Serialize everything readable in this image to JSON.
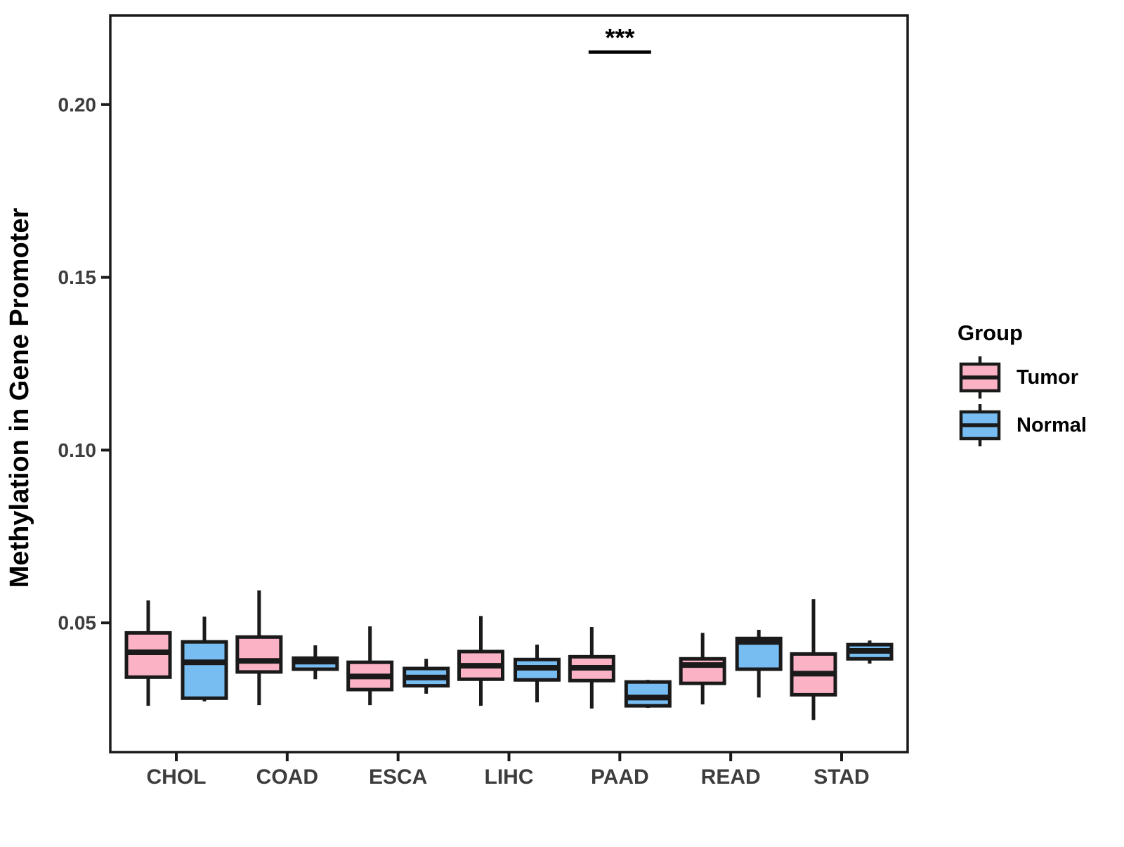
{
  "chart_data": {
    "type": "boxplot",
    "title": "",
    "xlabel": "",
    "ylabel": "Methylation in Gene Promoter",
    "categories": [
      "CHOL",
      "COAD",
      "ESCA",
      "LIHC",
      "PAAD",
      "READ",
      "STAD"
    ],
    "y_ticks": [
      "0.05",
      "0.10",
      "0.15",
      "0.20"
    ],
    "y_tick_values": [
      0.05,
      0.1,
      0.15,
      0.2
    ],
    "ylim": [
      0.0126,
      0.2258
    ],
    "grid": false,
    "colors": {
      "tumor_fill": "#FBB2C4",
      "normal_fill": "#77BDF2",
      "stroke": "#1a1a1a",
      "axis_text": "#3d3d3d",
      "title_text": "#000000"
    },
    "legend": {
      "title": "Group",
      "position": "right",
      "entries": [
        {
          "label": "Tumor",
          "color": "#FBB2C4"
        },
        {
          "label": "Normal",
          "color": "#77BDF2"
        }
      ]
    },
    "series": [
      {
        "name": "Tumor",
        "color": "#FBB2C4",
        "boxes": [
          {
            "category": "CHOL",
            "min": 0.026,
            "q1": 0.0343,
            "median": 0.0415,
            "q3": 0.0471,
            "max": 0.0565
          },
          {
            "category": "COAD",
            "min": 0.0262,
            "q1": 0.0358,
            "median": 0.039,
            "q3": 0.0459,
            "max": 0.0594
          },
          {
            "category": "ESCA",
            "min": 0.0262,
            "q1": 0.0307,
            "median": 0.0345,
            "q3": 0.0386,
            "max": 0.049
          },
          {
            "category": "LIHC",
            "min": 0.026,
            "q1": 0.0337,
            "median": 0.0376,
            "q3": 0.0417,
            "max": 0.052
          },
          {
            "category": "PAAD",
            "min": 0.0252,
            "q1": 0.0333,
            "median": 0.037,
            "q3": 0.0402,
            "max": 0.0488
          },
          {
            "category": "READ",
            "min": 0.0264,
            "q1": 0.0325,
            "median": 0.0378,
            "q3": 0.0396,
            "max": 0.0471
          },
          {
            "category": "STAD",
            "min": 0.0219,
            "q1": 0.0292,
            "median": 0.0353,
            "q3": 0.041,
            "max": 0.0569
          }
        ]
      },
      {
        "name": "Normal",
        "color": "#77BDF2",
        "boxes": [
          {
            "category": "CHOL",
            "min": 0.0273,
            "q1": 0.0282,
            "median": 0.0386,
            "q3": 0.0445,
            "max": 0.0518
          },
          {
            "category": "COAD",
            "min": 0.0337,
            "q1": 0.0366,
            "median": 0.0388,
            "q3": 0.0398,
            "max": 0.0435
          },
          {
            "category": "ESCA",
            "min": 0.0295,
            "q1": 0.0318,
            "median": 0.0342,
            "q3": 0.0368,
            "max": 0.0396
          },
          {
            "category": "LIHC",
            "min": 0.027,
            "q1": 0.0335,
            "median": 0.037,
            "q3": 0.0394,
            "max": 0.0437
          },
          {
            "category": "PAAD",
            "min": 0.0254,
            "q1": 0.026,
            "median": 0.0284,
            "q3": 0.0329,
            "max": 0.0335
          },
          {
            "category": "READ",
            "min": 0.0284,
            "q1": 0.0366,
            "median": 0.0445,
            "q3": 0.0455,
            "max": 0.048
          },
          {
            "category": "STAD",
            "min": 0.0382,
            "q1": 0.0396,
            "median": 0.0419,
            "q3": 0.0437,
            "max": 0.0449
          }
        ]
      }
    ],
    "annotation": {
      "label": "***",
      "category": "PAAD",
      "y_line": 0.2152
    }
  }
}
